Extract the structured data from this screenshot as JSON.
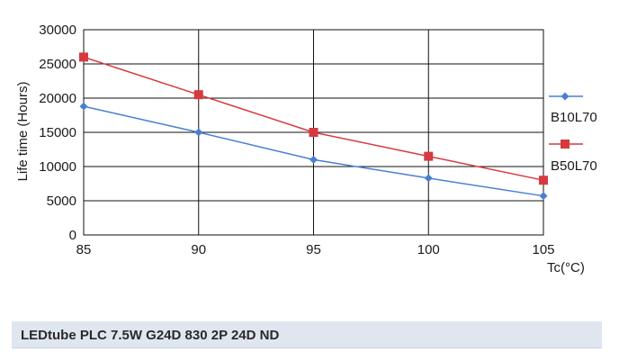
{
  "chart_data": {
    "type": "line",
    "x": [
      85,
      90,
      95,
      100,
      105
    ],
    "series": [
      {
        "name": "B10L70",
        "values": [
          18800,
          15000,
          11000,
          8300,
          5700
        ],
        "color": "#4a7fd0",
        "marker": "diamond"
      },
      {
        "name": "B50L70",
        "values": [
          26000,
          20500,
          15000,
          11500,
          8000
        ],
        "color": "#d63a3f",
        "marker": "square"
      }
    ],
    "xlabel": "Tc(°C)",
    "ylabel": "Life time (Hours)",
    "xlim": [
      85,
      105
    ],
    "ylim": [
      0,
      30000
    ],
    "xticks": [
      "85",
      "90",
      "95",
      "100",
      "105"
    ],
    "yticks": [
      "0",
      "5000",
      "10000",
      "15000",
      "20000",
      "25000",
      "30000"
    ],
    "grid": true,
    "legend": "right"
  },
  "caption": "LEDtube PLC 7.5W G24D 830 2P 24D ND"
}
